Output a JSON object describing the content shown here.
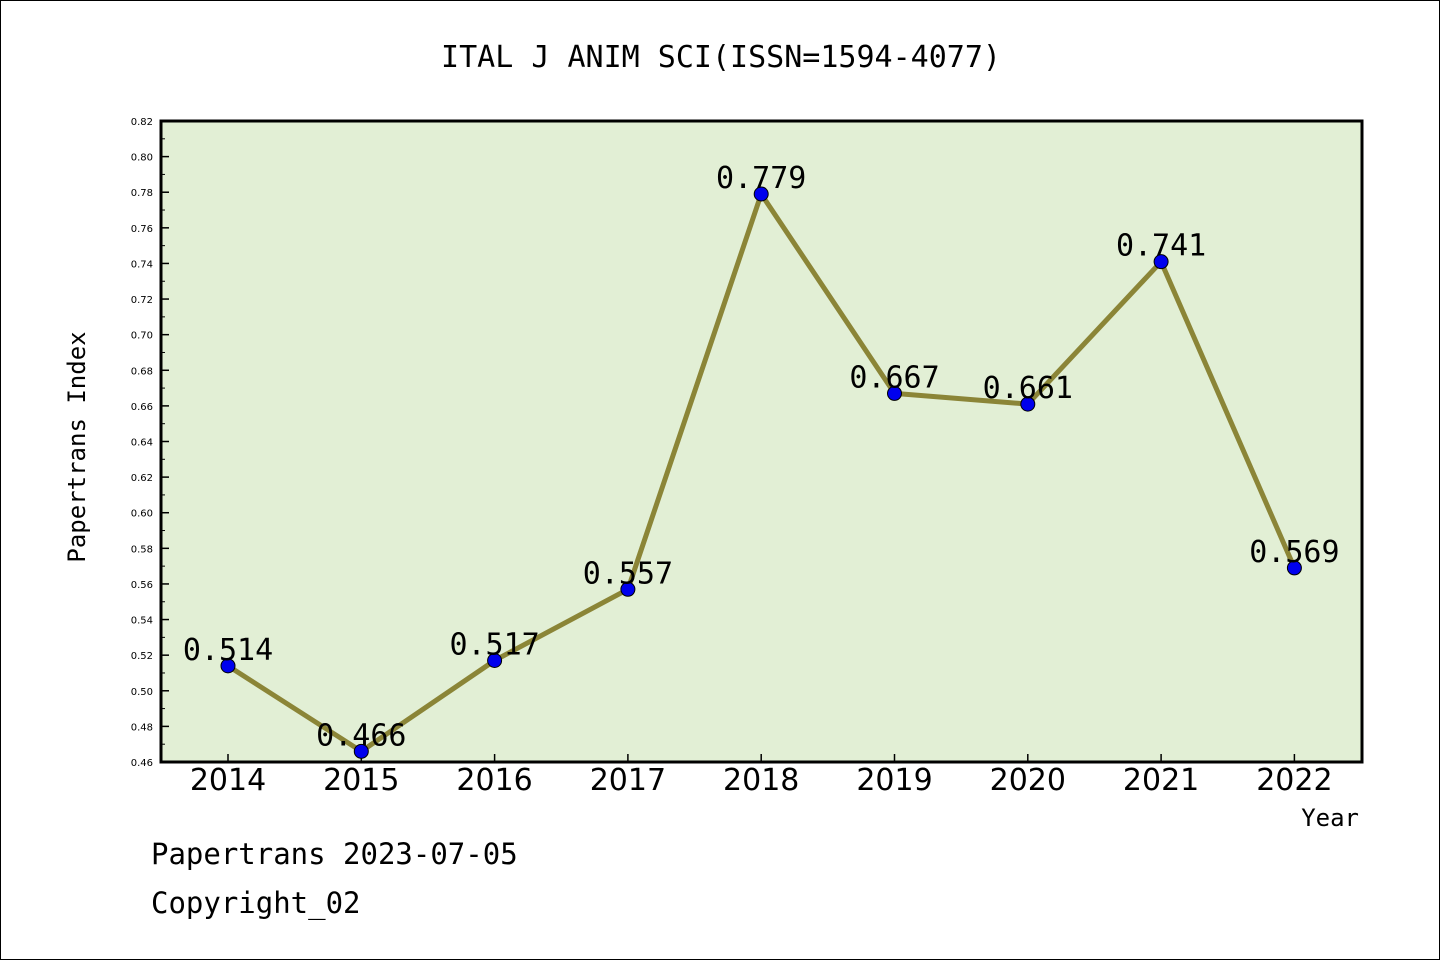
{
  "chart_data": {
    "type": "line",
    "title": "ITAL J ANIM SCI(ISSN=1594-4077)",
    "xlabel": "Year",
    "ylabel": "Papertrans Index",
    "categories": [
      "2014",
      "2015",
      "2016",
      "2017",
      "2018",
      "2019",
      "2020",
      "2021",
      "2022"
    ],
    "values": [
      0.514,
      0.466,
      0.517,
      0.557,
      0.779,
      0.667,
      0.661,
      0.741,
      0.569
    ],
    "data_labels": [
      "0.514",
      "0.466",
      "0.517",
      "0.557",
      "0.779",
      "0.667",
      "0.661",
      "0.741",
      "0.569"
    ],
    "ylim": [
      0.46,
      0.82
    ],
    "y_ticks": [
      "0.46",
      "0.48",
      "0.50",
      "0.52",
      "0.54",
      "0.56",
      "0.58",
      "0.60",
      "0.62",
      "0.64",
      "0.66",
      "0.68",
      "0.70",
      "0.72",
      "0.74",
      "0.76",
      "0.78",
      "0.80",
      "0.82"
    ],
    "grid": false,
    "legend": "none",
    "colors": {
      "plot_background": "#e2efd5",
      "line": "#8b8537",
      "marker": "#0000ee",
      "frame": "#000000"
    }
  },
  "footer": {
    "source": "Papertrans 2023-07-05",
    "copyright": "Copyright_02"
  }
}
